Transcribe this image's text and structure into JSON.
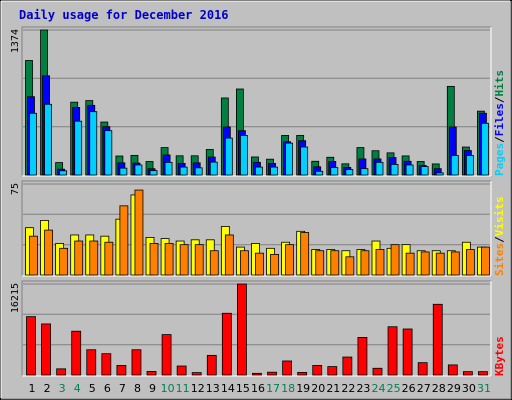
{
  "chart_data": {
    "type": "bar",
    "title": "Daily usage for December 2016",
    "categories": [
      "1",
      "2",
      "3",
      "4",
      "5",
      "6",
      "7",
      "8",
      "9",
      "10",
      "11",
      "12",
      "13",
      "14",
      "15",
      "16",
      "17",
      "18",
      "19",
      "20",
      "21",
      "22",
      "23",
      "24",
      "25",
      "26",
      "27",
      "28",
      "29",
      "30",
      "31"
    ],
    "weekend_days": [
      "3",
      "4",
      "10",
      "11",
      "17",
      "18",
      "24",
      "25",
      "31"
    ],
    "panels": [
      {
        "name": "hits-files-pages",
        "ymax_label": "1374",
        "ymax": 1374,
        "legend": [
          "Pages",
          "Files",
          "Hits"
        ],
        "series": [
          {
            "name": "Hits",
            "color": "#008040",
            "values": [
              1085,
              1374,
              118,
              690,
              705,
              502,
              180,
              186,
              128,
              260,
              182,
              182,
              242,
              730,
              815,
              171,
              150,
              375,
              375,
              130,
              168,
              106,
              260,
              230,
              210,
              181,
              128,
              105,
              840,
              265,
              605
            ]
          },
          {
            "name": "Files",
            "color": "#0000ff",
            "values": [
              742,
              940,
              55,
              640,
              660,
              458,
              115,
              113,
              60,
              190,
              110,
              115,
              170,
              455,
              420,
              120,
              110,
              315,
              325,
              78,
              128,
              72,
              152,
              152,
              165,
              130,
              90,
              60,
              455,
              232,
              585
            ]
          },
          {
            "name": "Pages",
            "color": "#00d0ff",
            "values": [
              585,
              670,
              40,
              510,
              600,
              420,
              65,
              95,
              42,
              120,
              75,
              68,
              122,
              350,
              375,
              75,
              75,
              302,
              265,
              35,
              70,
              52,
              60,
              120,
              100,
              95,
              80,
              20,
              185,
              185,
              490
            ]
          }
        ]
      },
      {
        "name": "visits-sites",
        "ymax_label": "75",
        "ymax": 75,
        "legend": [
          "Sites",
          "Visits"
        ],
        "series": [
          {
            "name": "Visits",
            "color": "#ffff00",
            "values": [
              39,
              45,
              26,
              33,
              33,
              32,
              46,
              66,
              31,
              30,
              28,
              29,
              29,
              40,
              23,
              26,
              22,
              27,
              36,
              21,
              21,
              20,
              21,
              28,
              22,
              25,
              20,
              20,
              20,
              27,
              23
            ]
          },
          {
            "name": "Sites",
            "color": "#ff8000",
            "values": [
              32,
              37,
              22,
              28,
              28,
              27,
              57,
              70,
              26,
              26,
              25,
              25,
              20,
              33,
              20,
              18,
              17,
              25,
              35,
              20,
              20,
              15,
              20,
              21,
              25,
              18,
              19,
              18,
              19,
              21,
              23
            ]
          }
        ]
      },
      {
        "name": "kbytes",
        "ymax_label": "16215",
        "ymax": 16215,
        "legend": [
          "KBytes"
        ],
        "series": [
          {
            "name": "KBytes",
            "color": "#ff0000",
            "values": [
              10400,
              9100,
              1100,
              7800,
              4500,
              3800,
              1700,
              4500,
              640,
              7200,
              1600,
              430,
              3500,
              11000,
              16215,
              300,
              500,
              2500,
              460,
              1700,
              1500,
              3200,
              6700,
              1200,
              8600,
              8200,
              2200,
              12600,
              1800,
              600,
              600
            ]
          }
        ]
      }
    ]
  }
}
